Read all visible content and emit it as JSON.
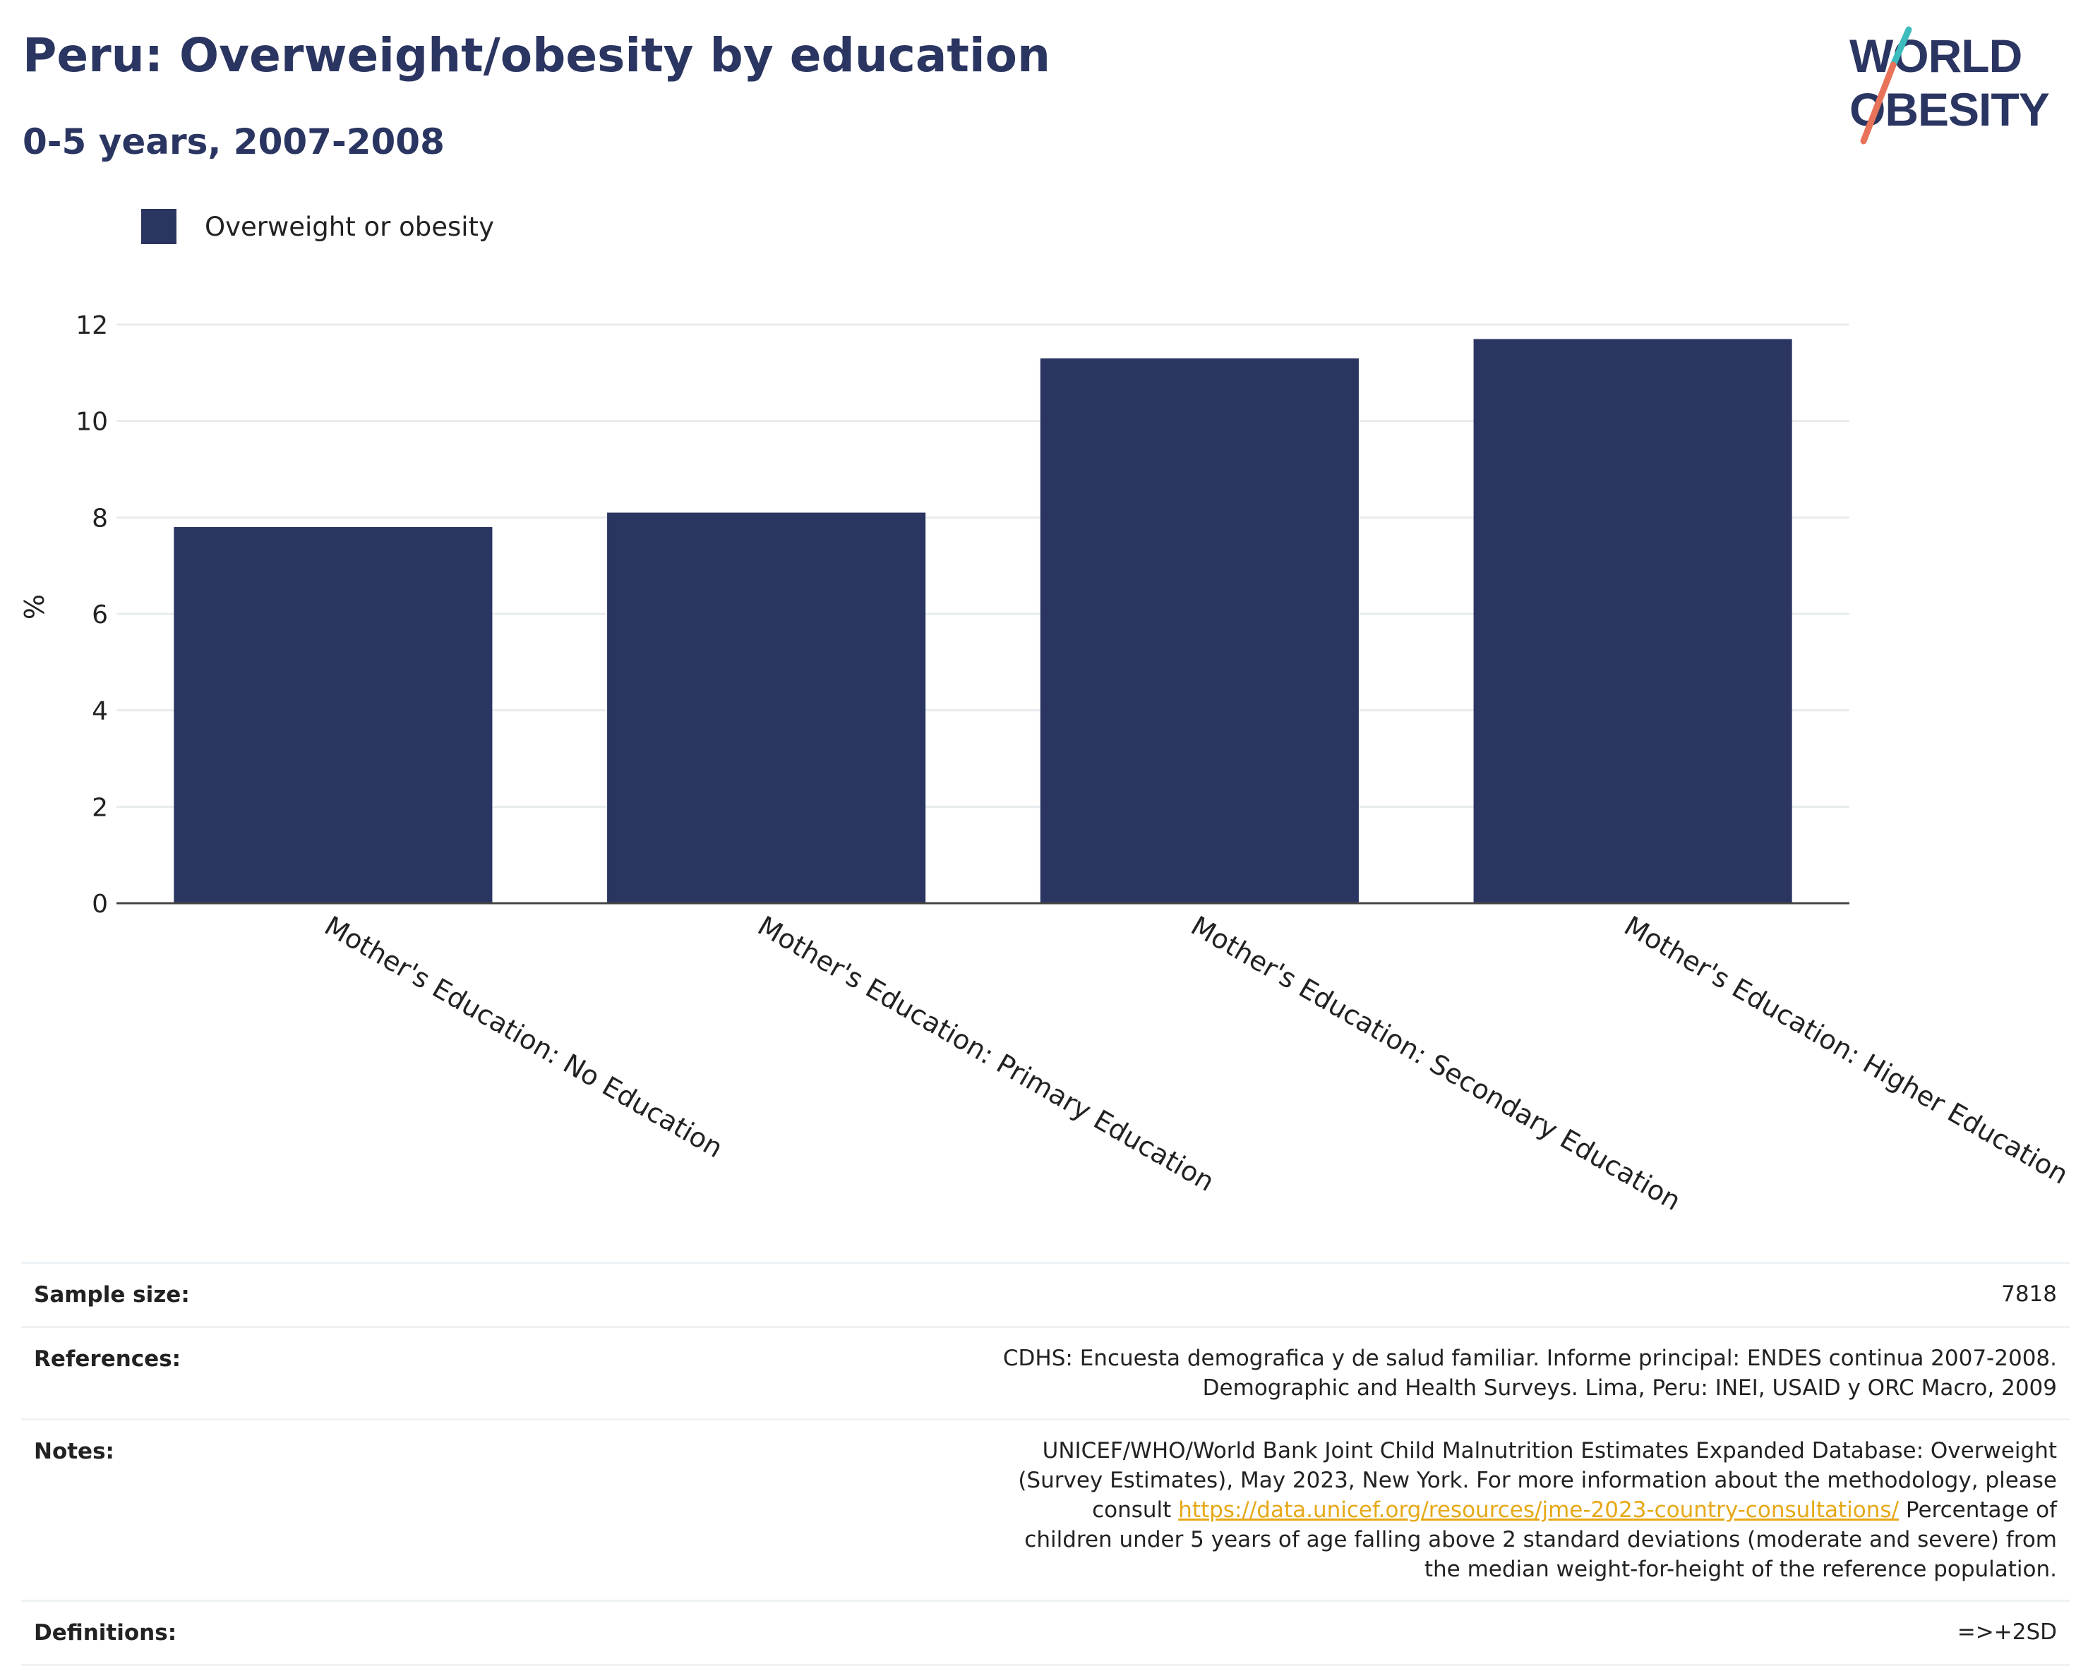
{
  "header": {
    "title": "Peru: Overweight/obesity by education",
    "subtitle": "0-5 years, 2007-2008"
  },
  "logo": {
    "line1": "WORLD",
    "line2": "OBESITY",
    "colors": {
      "text": "#2b3561",
      "teal": "#3cbcbc",
      "coral": "#e8735a"
    }
  },
  "legend": {
    "label": "Overweight or obesity"
  },
  "colors": {
    "bar": "#2b3561",
    "grid": "#e8ecef",
    "axis": "#444444",
    "link": "#e6a817"
  },
  "chart_data": {
    "type": "bar",
    "categories": [
      "Mother's Education: No Education",
      "Mother's Education: Primary Education",
      "Mother's Education: Secondary Education",
      "Mother's Education: Higher Education"
    ],
    "series": [
      {
        "name": "Overweight or obesity",
        "values": [
          7.8,
          8.1,
          11.3,
          11.7
        ]
      }
    ],
    "xlabel": "",
    "ylabel": "%",
    "ylim": [
      0,
      12
    ],
    "yticks": [
      0,
      2,
      4,
      6,
      8,
      10,
      12
    ],
    "grid": true,
    "legend_position": "top-left"
  },
  "meta": {
    "sample_size": {
      "label": "Sample size:",
      "value": "7818"
    },
    "references": {
      "label": "References:",
      "value": "CDHS: Encuesta demografica y de salud familiar. Informe principal: ENDES continua 2007-2008. Demographic and Health Surveys. Lima, Peru: INEI, USAID y ORC Macro, 2009"
    },
    "notes": {
      "label": "Notes:",
      "text_before": "UNICEF/WHO/World Bank Joint Child Malnutrition Estimates Expanded Database: Overweight (Survey Estimates), May 2023, New York. For more information about the methodology, please consult ",
      "link": "https://data.unicef.org/resources/jme-2023-country-consultations/",
      "text_after": " Percentage of children under 5 years of age falling above 2 standard deviations (moderate and severe) from the median weight-for-height of the reference population."
    },
    "definitions": {
      "label": "Definitions:",
      "value": "=>+2SD"
    }
  }
}
